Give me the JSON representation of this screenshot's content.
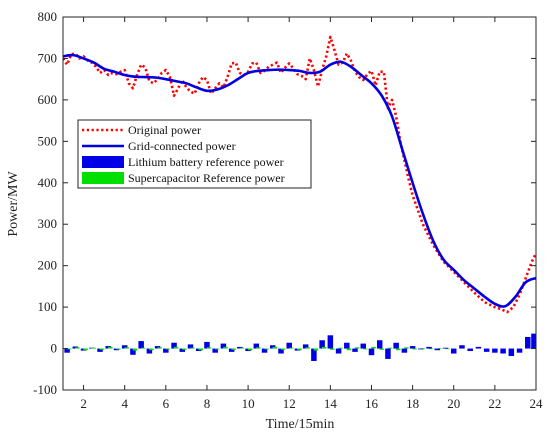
{
  "chart_data": {
    "type": "line",
    "xlabel": "Time/15min",
    "ylabel": "Power/MW",
    "xlim": [
      1,
      24
    ],
    "ylim": [
      -100,
      800
    ],
    "xticks": [
      2,
      4,
      6,
      8,
      10,
      12,
      14,
      16,
      18,
      20,
      22,
      24
    ],
    "yticks": [
      -100,
      0,
      100,
      200,
      300,
      400,
      500,
      600,
      700,
      800
    ],
    "grid": false,
    "legend_position": "center-left",
    "series": [
      {
        "name": "Original power",
        "style": "dotted-line",
        "color": "#ff0000",
        "x": [
          1.0,
          1.2,
          1.4,
          1.6,
          1.8,
          2.0,
          2.2,
          2.4,
          2.6,
          2.8,
          3.0,
          3.2,
          3.4,
          3.6,
          3.8,
          4.0,
          4.2,
          4.4,
          4.6,
          4.8,
          5.0,
          5.2,
          5.4,
          5.6,
          5.8,
          6.0,
          6.2,
          6.4,
          6.6,
          6.8,
          7.0,
          7.2,
          7.4,
          7.6,
          7.8,
          8.0,
          8.2,
          8.4,
          8.6,
          8.8,
          9.0,
          9.2,
          9.4,
          9.6,
          9.8,
          10.0,
          10.2,
          10.4,
          10.6,
          10.8,
          11.0,
          11.2,
          11.4,
          11.6,
          11.8,
          12.0,
          12.2,
          12.4,
          12.6,
          12.8,
          13.0,
          13.2,
          13.4,
          13.6,
          13.8,
          14.0,
          14.2,
          14.4,
          14.6,
          14.8,
          15.0,
          15.2,
          15.4,
          15.6,
          15.8,
          16.0,
          16.2,
          16.4,
          16.6,
          16.8,
          17.0,
          17.2,
          17.4,
          17.6,
          17.8,
          18.0,
          18.5,
          19.0,
          19.5,
          20.0,
          20.5,
          21.0,
          21.5,
          22.0,
          22.3,
          22.6,
          22.9,
          23.2,
          23.5,
          23.8,
          24.0
        ],
        "values": [
          700,
          685,
          710,
          712,
          700,
          705,
          695,
          690,
          680,
          665,
          672,
          660,
          665,
          662,
          668,
          672,
          640,
          628,
          660,
          685,
          678,
          645,
          640,
          650,
          665,
          672,
          655,
          610,
          628,
          648,
          630,
          620,
          615,
          640,
          655,
          648,
          615,
          628,
          640,
          630,
          655,
          688,
          690,
          665,
          660,
          668,
          688,
          690,
          665,
          670,
          680,
          685,
          690,
          665,
          678,
          688,
          676,
          662,
          658,
          650,
          700,
          672,
          632,
          672,
          705,
          752,
          720,
          685,
          690,
          712,
          695,
          668,
          655,
          648,
          662,
          670,
          635,
          668,
          668,
          580,
          600,
          560,
          500,
          455,
          410,
          370,
          300,
          250,
          210,
          185,
          160,
          135,
          112,
          100,
          95,
          88,
          100,
          130,
          170,
          210,
          230
        ],
        "smooth": false
      },
      {
        "name": "Grid-connected power",
        "style": "solid-line",
        "color": "#0000e0",
        "x": [
          1.0,
          1.5,
          2.0,
          2.5,
          3.0,
          3.5,
          4.0,
          4.5,
          5.0,
          5.5,
          6.0,
          6.5,
          7.0,
          7.5,
          8.0,
          8.5,
          9.0,
          9.5,
          10.0,
          10.5,
          11.0,
          11.5,
          12.0,
          12.5,
          13.0,
          13.5,
          14.0,
          14.5,
          15.0,
          15.5,
          16.0,
          16.5,
          17.0,
          17.5,
          18.0,
          18.5,
          19.0,
          19.5,
          20.0,
          20.5,
          21.0,
          21.5,
          22.0,
          22.5,
          23.0,
          23.5,
          24.0
        ],
        "values": [
          705,
          708,
          700,
          690,
          675,
          668,
          660,
          656,
          655,
          654,
          650,
          645,
          640,
          630,
          622,
          625,
          635,
          650,
          665,
          670,
          672,
          673,
          672,
          670,
          665,
          668,
          685,
          692,
          680,
          660,
          640,
          610,
          560,
          480,
          400,
          325,
          260,
          215,
          190,
          165,
          145,
          125,
          108,
          102,
          125,
          160,
          170
        ],
        "smooth": true
      },
      {
        "name": "Lithium battery reference power",
        "style": "bar",
        "color": "#0000e6",
        "x": [
          1.2,
          1.6,
          2.0,
          2.4,
          2.8,
          3.2,
          3.6,
          4.0,
          4.4,
          4.8,
          5.2,
          5.6,
          6.0,
          6.4,
          6.8,
          7.2,
          7.6,
          8.0,
          8.4,
          8.8,
          9.2,
          9.6,
          10.0,
          10.4,
          10.8,
          11.2,
          11.6,
          12.0,
          12.4,
          12.8,
          13.2,
          13.6,
          14.0,
          14.4,
          14.8,
          15.2,
          15.6,
          16.0,
          16.4,
          16.8,
          17.2,
          17.6,
          18.0,
          18.4,
          18.8,
          19.2,
          19.6,
          20.0,
          20.4,
          20.8,
          21.2,
          21.6,
          22.0,
          22.4,
          22.8,
          23.2,
          23.6,
          23.9
        ],
        "values": [
          -10,
          5,
          -5,
          2,
          -8,
          6,
          -4,
          8,
          -15,
          18,
          -12,
          6,
          -10,
          14,
          -8,
          10,
          -6,
          16,
          -10,
          12,
          -8,
          4,
          -6,
          12,
          -10,
          8,
          -12,
          14,
          -5,
          10,
          -30,
          20,
          32,
          -12,
          14,
          -8,
          12,
          -16,
          20,
          -25,
          14,
          -10,
          6,
          -2,
          4,
          -4,
          2,
          -12,
          8,
          -6,
          4,
          -8,
          -10,
          -12,
          -18,
          -10,
          28,
          36
        ]
      },
      {
        "name": "Supercapacitor Reference power",
        "style": "bar",
        "color": "#00e000",
        "x": [
          1.3,
          1.7,
          2.1,
          2.5,
          2.9,
          3.3,
          3.7,
          4.1,
          4.5,
          4.9,
          5.3,
          5.7,
          6.1,
          6.5,
          6.9,
          7.3,
          7.7,
          8.1,
          8.5,
          8.9,
          9.3,
          9.7,
          10.1,
          10.5,
          10.9,
          11.3,
          11.7,
          12.1,
          12.5,
          12.9,
          13.3,
          13.7,
          14.1,
          14.5,
          14.9,
          15.3,
          15.7,
          16.1,
          16.5,
          16.9,
          17.3,
          17.7,
          18.1,
          18.5,
          18.9,
          19.3,
          19.7
        ],
        "values": [
          -2,
          3,
          -4,
          2,
          -3,
          4,
          -2,
          3,
          -5,
          2,
          -4,
          3,
          -2,
          4,
          -3,
          2,
          -4,
          3,
          -2,
          4,
          -3,
          2,
          -4,
          3,
          -2,
          4,
          -3,
          2,
          -4,
          3,
          -5,
          4,
          -3,
          2,
          -4,
          3,
          -2,
          4,
          -3,
          2,
          -4,
          3,
          -2,
          1,
          -1,
          1,
          -1
        ]
      }
    ]
  }
}
